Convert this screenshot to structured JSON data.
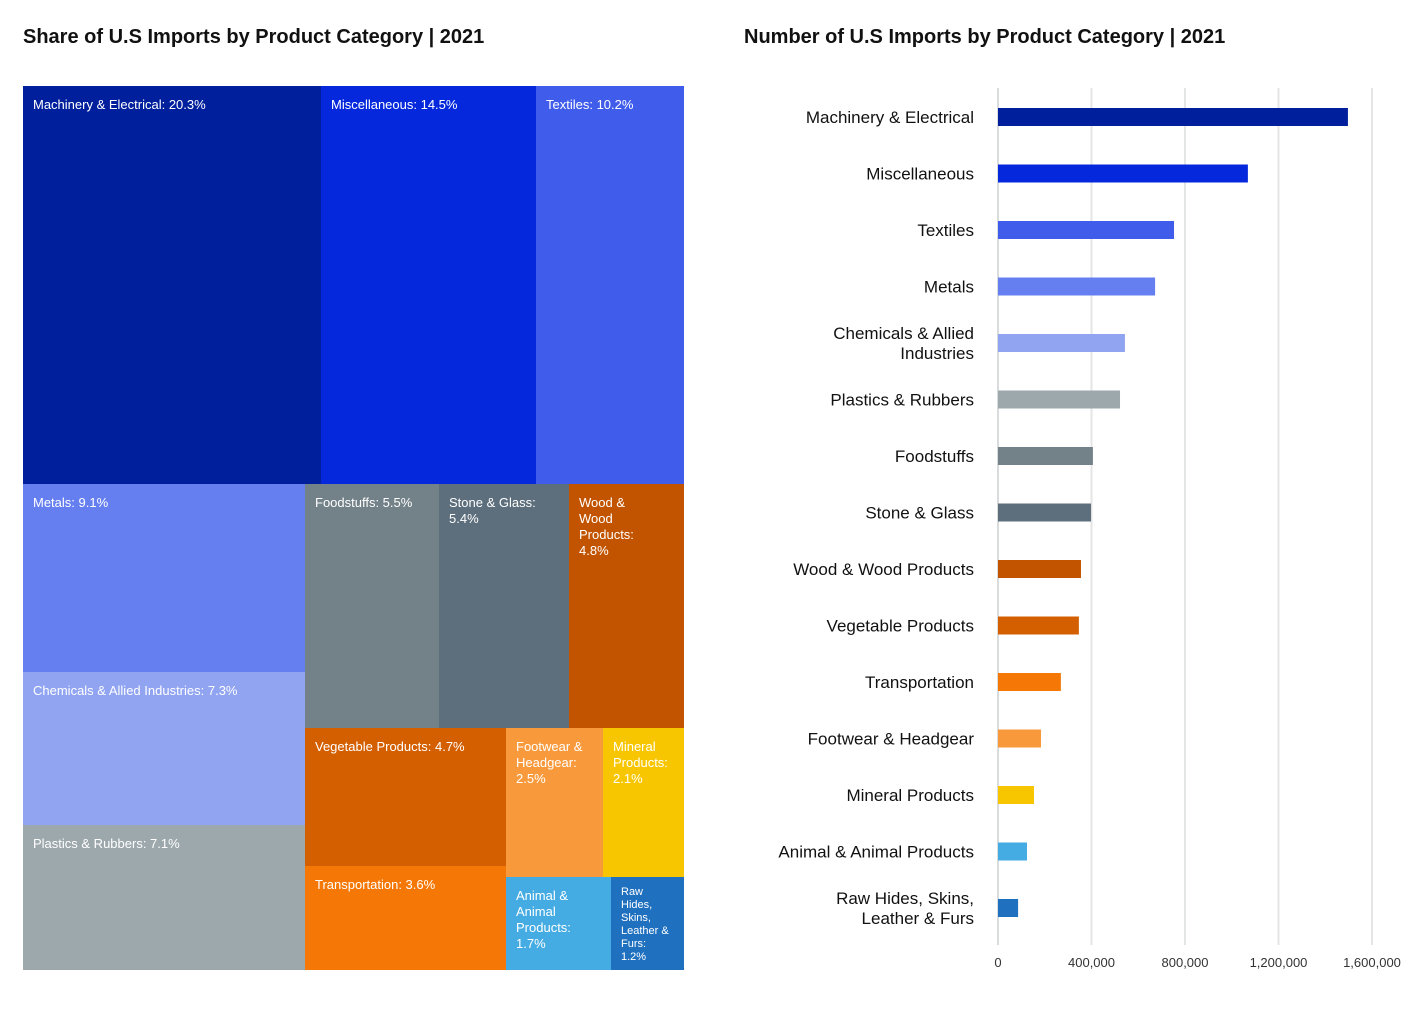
{
  "treemap": {
    "title": "Share of U.S Imports by Product Category | 2021",
    "tiles": [
      {
        "label": "Machinery & Electrical: 20.3%",
        "color": "#001f9c"
      },
      {
        "label": "Miscellaneous: 14.5%",
        "color": "#0528dc"
      },
      {
        "label": "Textiles: 10.2%",
        "color": "#405ceb"
      },
      {
        "label": "Metals: 9.1%",
        "color": "#667ff0"
      },
      {
        "label": "Chemicals & Allied Industries: 7.3%",
        "color": "#91a4f2"
      },
      {
        "label": "Plastics & Rubbers: 7.1%",
        "color": "#9da8ad"
      },
      {
        "label": "Foodstuffs: 5.5%",
        "color": "#738288"
      },
      {
        "label": "Stone & Glass: 5.4%",
        "color": "#5d6f7c"
      },
      {
        "label": "Wood & Wood Products: 4.8%",
        "color": "#c25400"
      },
      {
        "label": "Vegetable Products: 4.7%",
        "color": "#d45f00"
      },
      {
        "label": "Transportation: 3.6%",
        "color": "#f57806"
      },
      {
        "label": "Footwear & Headgear: 2.5%",
        "color": "#f89a3c"
      },
      {
        "label": "Mineral Products: 2.1%",
        "color": "#f8c600"
      },
      {
        "label": "Animal & Animal Products: 1.7%",
        "color": "#45abe3"
      },
      {
        "label": "Raw Hides, Skins, Leather & Furs: 1.2%",
        "color": "#1f70bf"
      }
    ]
  },
  "chart_data": [
    {
      "type": "treemap",
      "title": "Share of U.S Imports by Product Category | 2021",
      "categories": [
        "Machinery & Electrical",
        "Miscellaneous",
        "Textiles",
        "Metals",
        "Chemicals & Allied Industries",
        "Plastics & Rubbers",
        "Foodstuffs",
        "Stone & Glass",
        "Wood & Wood Products",
        "Vegetable Products",
        "Transportation",
        "Footwear & Headgear",
        "Mineral Products",
        "Animal & Animal Products",
        "Raw Hides, Skins, Leather & Furs"
      ],
      "values": [
        20.3,
        14.5,
        10.2,
        9.1,
        7.3,
        7.1,
        5.5,
        5.4,
        4.8,
        4.7,
        3.6,
        2.5,
        2.1,
        1.7,
        1.2
      ]
    },
    {
      "type": "bar",
      "orientation": "horizontal",
      "title": "Number of U.S Imports by Product Category | 2021",
      "categories": [
        [
          "Machinery & Electrical"
        ],
        [
          "Miscellaneous"
        ],
        [
          "Textiles"
        ],
        [
          "Metals"
        ],
        [
          "Chemicals & Allied",
          "Industries"
        ],
        [
          "Plastics & Rubbers"
        ],
        [
          "Foodstuffs"
        ],
        [
          "Stone & Glass"
        ],
        [
          "Wood & Wood Products"
        ],
        [
          "Vegetable Products"
        ],
        [
          "Transportation"
        ],
        [
          "Footwear & Headgear"
        ],
        [
          "Mineral Products"
        ],
        [
          "Animal & Animal Products"
        ],
        [
          "Raw Hides, Skins,",
          "Leather & Furs"
        ]
      ],
      "values": [
        1497000,
        1069000,
        753000,
        672000,
        543000,
        522000,
        406000,
        398000,
        355000,
        346000,
        269000,
        184000,
        154000,
        124000,
        86000
      ],
      "colors": [
        "#001f9c",
        "#0528dc",
        "#405ceb",
        "#667ff0",
        "#91a4f2",
        "#9da8ad",
        "#738288",
        "#5d6f7c",
        "#c25400",
        "#d45f00",
        "#f57806",
        "#f89a3c",
        "#f8c600",
        "#45abe3",
        "#1f70bf"
      ],
      "xlim": [
        0,
        1600000
      ],
      "xticks": [
        0,
        400000,
        800000,
        1200000,
        1600000
      ],
      "xtick_labels": [
        "0",
        "400,000",
        "800,000",
        "1,200,000",
        "1,600,000"
      ],
      "grid": "vertical"
    }
  ]
}
